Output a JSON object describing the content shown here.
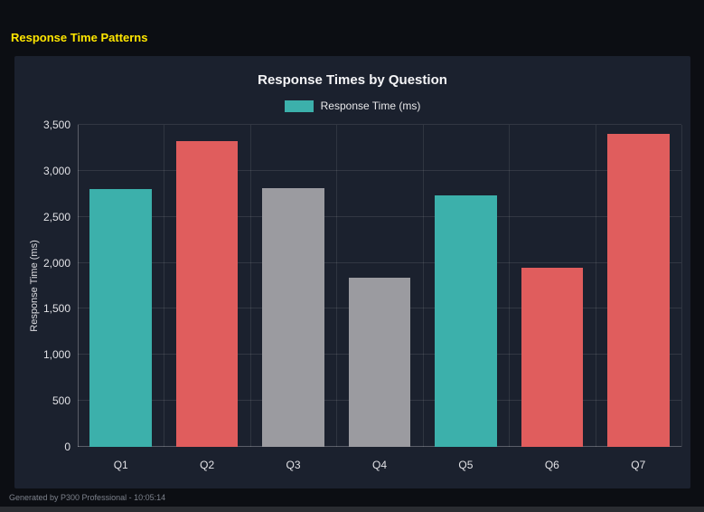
{
  "page": {
    "title": "Response Time Patterns",
    "footer": "Generated by P300 Professional - 10:05:14"
  },
  "colors": {
    "page_bg": "#0c0e13",
    "panel_bg": "#1b212e",
    "title_yellow": "#ffe600",
    "teal": "#3cb0ab",
    "red": "#e05d5d",
    "gray": "#9b9ba0"
  },
  "chart_data": {
    "type": "bar",
    "title": "Response Times by Question",
    "legend": [
      {
        "label": "Response Time (ms)",
        "color": "#3cb0ab"
      }
    ],
    "legend_position": "top",
    "categories": [
      "Q1",
      "Q2",
      "Q3",
      "Q4",
      "Q5",
      "Q6",
      "Q7"
    ],
    "values": [
      2800,
      3320,
      2810,
      1840,
      2730,
      1950,
      3400
    ],
    "bar_colors": [
      "#3cb0ab",
      "#e05d5d",
      "#9b9ba0",
      "#9b9ba0",
      "#3cb0ab",
      "#e05d5d",
      "#e05d5d"
    ],
    "xlabel": "",
    "ylabel": "Response Time (ms)",
    "ylim": [
      0,
      3500
    ],
    "yticks": [
      0,
      500,
      1000,
      1500,
      2000,
      2500,
      3000,
      3500
    ],
    "ytick_labels": [
      "0",
      "500",
      "1,000",
      "1,500",
      "2,000",
      "2,500",
      "3,000",
      "3,500"
    ],
    "grid": true
  }
}
